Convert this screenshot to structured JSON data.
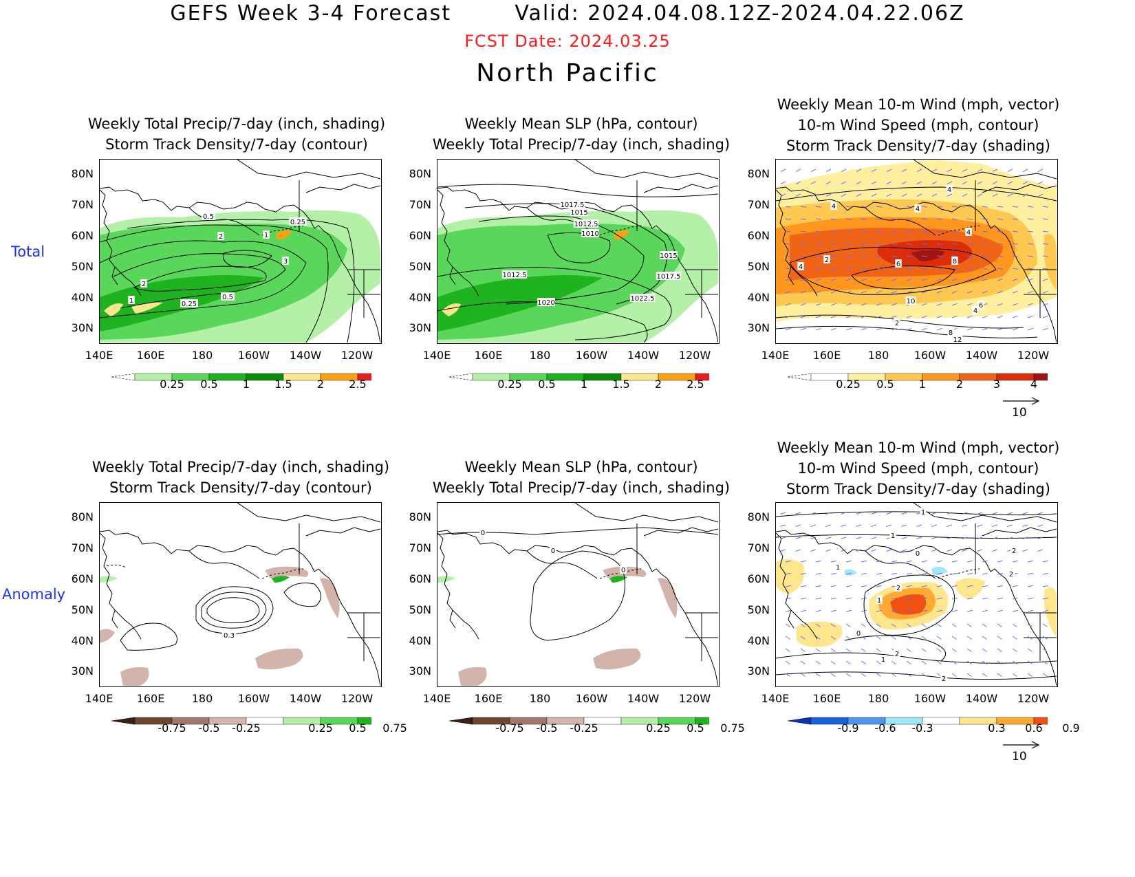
{
  "header": {
    "title": "GEFS Week 3-4 Forecast        Valid: 2024.04.08.12Z-2024.04.22.06Z",
    "fcst_date": "FCST Date: 2024.03.25",
    "region": "North Pacific"
  },
  "rows": {
    "total": "Total",
    "anomaly": "Anomaly"
  },
  "panel_titles": {
    "precip": "Weekly Total Precip/7-day (inch, shading)\nStorm Track Density/7-day (contour)",
    "slp": "Weekly Mean SLP (hPa, contour)\nWeekly Total Precip/7-day (inch, shading)",
    "wind": "Weekly Mean 10-m Wind (mph, vector)\n10-m Wind Speed (mph, contour)\nStorm Track Density/7-day (shading)"
  },
  "axes": {
    "lat": [
      "80N",
      "70N",
      "60N",
      "50N",
      "40N",
      "30N"
    ],
    "lon": [
      "140E",
      "160E",
      "180",
      "160W",
      "140W",
      "120W"
    ]
  },
  "colorbars": {
    "precip_total": [
      "0.25",
      "0.5",
      "1",
      "1.5",
      "2",
      "2.5"
    ],
    "storm_total": [
      "0.25",
      "0.5",
      "1",
      "2",
      "3",
      "4"
    ],
    "precip_anom": [
      "-0.75",
      "-0.5",
      "-0.25",
      "0.25",
      "0.5",
      "0.75"
    ],
    "storm_anom": [
      "-0.9",
      "-0.6",
      "-0.3",
      "0.3",
      "0.6",
      "0.9"
    ]
  },
  "colors": {
    "precip_total": [
      "#b4f0a8",
      "#5ad75a",
      "#1fb41f",
      "#0a8c0a",
      "#fae68c",
      "#faa014",
      "#e61e1e"
    ],
    "storm_total": [
      "#fff0a0",
      "#ffc850",
      "#ff9620",
      "#f06418",
      "#dc2d0a",
      "#a01414"
    ],
    "precip_anom": [
      "#6e4632",
      "#a0786e",
      "#d2b4aa",
      "#ffffff",
      "#b4f0a8",
      "#5ad75a",
      "#1fb41f"
    ],
    "storm_anom": [
      "#1464dc",
      "#5096f0",
      "#a0e6ff",
      "#ffffff",
      "#ffe68c",
      "#ffaa32",
      "#f05014"
    ]
  },
  "vector_reference": "10",
  "contour_labels": {
    "precip_total": [
      "0.5",
      "0.25",
      "2",
      "1",
      "3",
      "2",
      "1",
      "0.25",
      "0.5"
    ],
    "slp_total": [
      "1017.5",
      "1015",
      "1012.5",
      "1010",
      "1015",
      "1012.5",
      "1017.5",
      "1020",
      "1022.5"
    ],
    "wind_total": [
      "4",
      "4",
      "4",
      "4",
      "2",
      "6",
      "8",
      "4",
      "10",
      "6",
      "4",
      "2",
      "8",
      "12"
    ],
    "precip_anom": [
      "0.3"
    ],
    "slp_anom": [
      "0",
      "0",
      "0"
    ],
    "wind_anom": [
      "1",
      "1",
      "0",
      "2",
      "1",
      "2",
      "1",
      "2",
      "0",
      "2",
      "1",
      "2"
    ]
  }
}
